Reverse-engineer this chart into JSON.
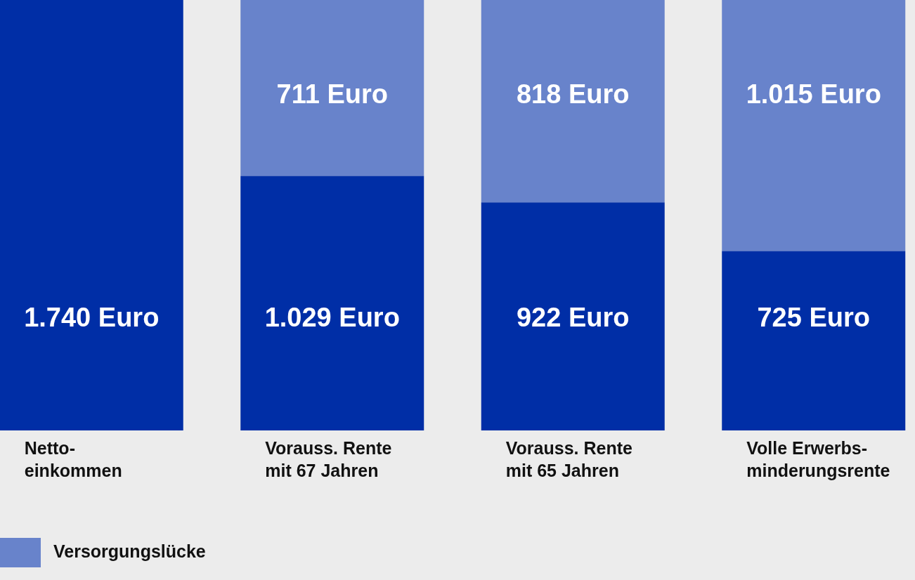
{
  "chart_data": {
    "type": "bar",
    "categories": [
      "Netto-\neinkommen",
      "Vorauss. Rente\nmit 67 Jahren",
      "Vorauss. Rente\nmit 65 Jahren",
      "Volle Erwerbs-\nminderungsrente"
    ],
    "stacked": true,
    "legend": "bottom left",
    "series": [
      {
        "color": "#002ea6",
        "values": [
          1740,
          1029,
          922,
          725
        ],
        "value_labels": [
          "1.740 Euro",
          "1.029 Euro",
          "922 Euro",
          "725 Euro"
        ]
      },
      {
        "name": "Versorgungslücke",
        "color": "#6883cb",
        "values": [
          null,
          711,
          818,
          1015
        ],
        "value_labels": [
          null,
          "711 Euro",
          "818 Euro",
          "1.015 Euro"
        ]
      }
    ]
  }
}
